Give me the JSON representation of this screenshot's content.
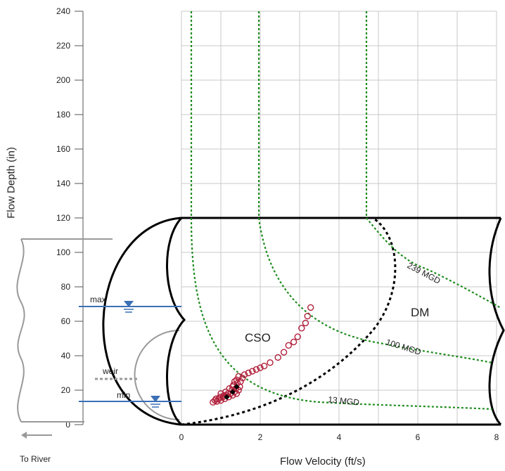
{
  "chart_data": {
    "type": "scatter",
    "title": "",
    "xlabel": "Flow Velocity (ft/s)",
    "ylabel": "Flow Depth (in)",
    "xlim": [
      0,
      8
    ],
    "ylim": [
      0,
      240
    ],
    "x_ticks": [
      "0",
      "2",
      "4",
      "6",
      "8"
    ],
    "y_ticks": [
      "0",
      "20",
      "40",
      "60",
      "80",
      "100",
      "120",
      "140",
      "160",
      "180",
      "200",
      "220",
      "240"
    ],
    "grid": true,
    "series": [
      {
        "name": "",
        "marker": "open-circle",
        "color": "#b01f3a",
        "points": [
          [
            0.8,
            13
          ],
          [
            0.85,
            14
          ],
          [
            0.9,
            13.5
          ],
          [
            0.95,
            15
          ],
          [
            1.0,
            14
          ],
          [
            1.05,
            16
          ],
          [
            1.1,
            15
          ],
          [
            1.15,
            17
          ],
          [
            1.2,
            16
          ],
          [
            1.25,
            18
          ],
          [
            1.3,
            17
          ],
          [
            1.35,
            19
          ],
          [
            1.4,
            18
          ],
          [
            1.45,
            20
          ],
          [
            0.88,
            15
          ],
          [
            0.98,
            16
          ],
          [
            1.08,
            17
          ],
          [
            1.18,
            18
          ],
          [
            1.28,
            20
          ],
          [
            1.38,
            21
          ],
          [
            1.48,
            22
          ],
          [
            1.0,
            18
          ],
          [
            1.12,
            19
          ],
          [
            1.22,
            21
          ],
          [
            1.32,
            23
          ],
          [
            1.42,
            24
          ],
          [
            1.4,
            26
          ],
          [
            1.45,
            28
          ],
          [
            1.35,
            25
          ],
          [
            1.3,
            22
          ],
          [
            1.5,
            25
          ],
          [
            1.55,
            27
          ],
          [
            1.6,
            29
          ],
          [
            1.7,
            30
          ],
          [
            1.8,
            31
          ],
          [
            1.9,
            32
          ],
          [
            2.0,
            33
          ],
          [
            2.1,
            34
          ],
          [
            2.25,
            36
          ],
          [
            2.45,
            39
          ],
          [
            2.6,
            42
          ],
          [
            2.72,
            46
          ],
          [
            2.85,
            48
          ],
          [
            2.95,
            51
          ],
          [
            3.05,
            56
          ],
          [
            3.15,
            59
          ],
          [
            3.2,
            63
          ],
          [
            3.28,
            68
          ]
        ]
      },
      {
        "name": "",
        "marker": "filled-diamond",
        "color": "#000000",
        "points": [
          [
            1.15,
            16
          ],
          [
            1.3,
            19
          ],
          [
            1.4,
            22
          ]
        ]
      }
    ],
    "iso_flow_labels": [
      "13 MGD",
      "100 MGD",
      "239 MGD"
    ],
    "iso_flow_color": "#1e8c1e",
    "region_labels": [
      "CSO",
      "DM"
    ],
    "annotations": [
      "max",
      "weir",
      "min"
    ],
    "direction_label": "To River"
  }
}
